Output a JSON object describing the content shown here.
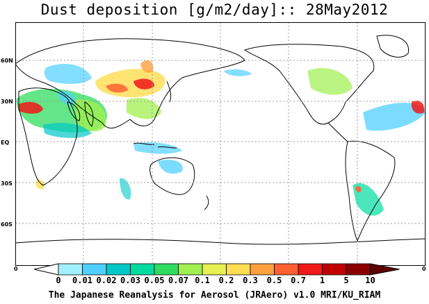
{
  "title": "Dust deposition [g/m2/day]:: 28May2012",
  "footer": "The Japanese Reanalysis for Aerosol (JRAero) v1.0 MRI/KU_RIAM",
  "latitude_labels": [
    "60N",
    "30N",
    "EQ",
    "30S",
    "60S"
  ],
  "edge_labels": {
    "left": "0",
    "right": "0"
  },
  "colorbar": {
    "labels": [
      "0",
      "0.01",
      "0.02",
      "0.03",
      "0.05",
      "0.07",
      "0.1",
      "0.2",
      "0.3",
      "0.5",
      "0.7",
      "1",
      "5",
      "10"
    ],
    "colors": [
      "#ffffff",
      "#a0f0ff",
      "#50d0ff",
      "#00c8c8",
      "#00dca0",
      "#30dc60",
      "#a0f050",
      "#e6f050",
      "#ffdc50",
      "#ffa040",
      "#ff6030",
      "#f01818",
      "#c00000",
      "#8c0000",
      "#600000"
    ]
  },
  "map_colors": {
    "coast": "#000000",
    "grid": "#999999"
  }
}
